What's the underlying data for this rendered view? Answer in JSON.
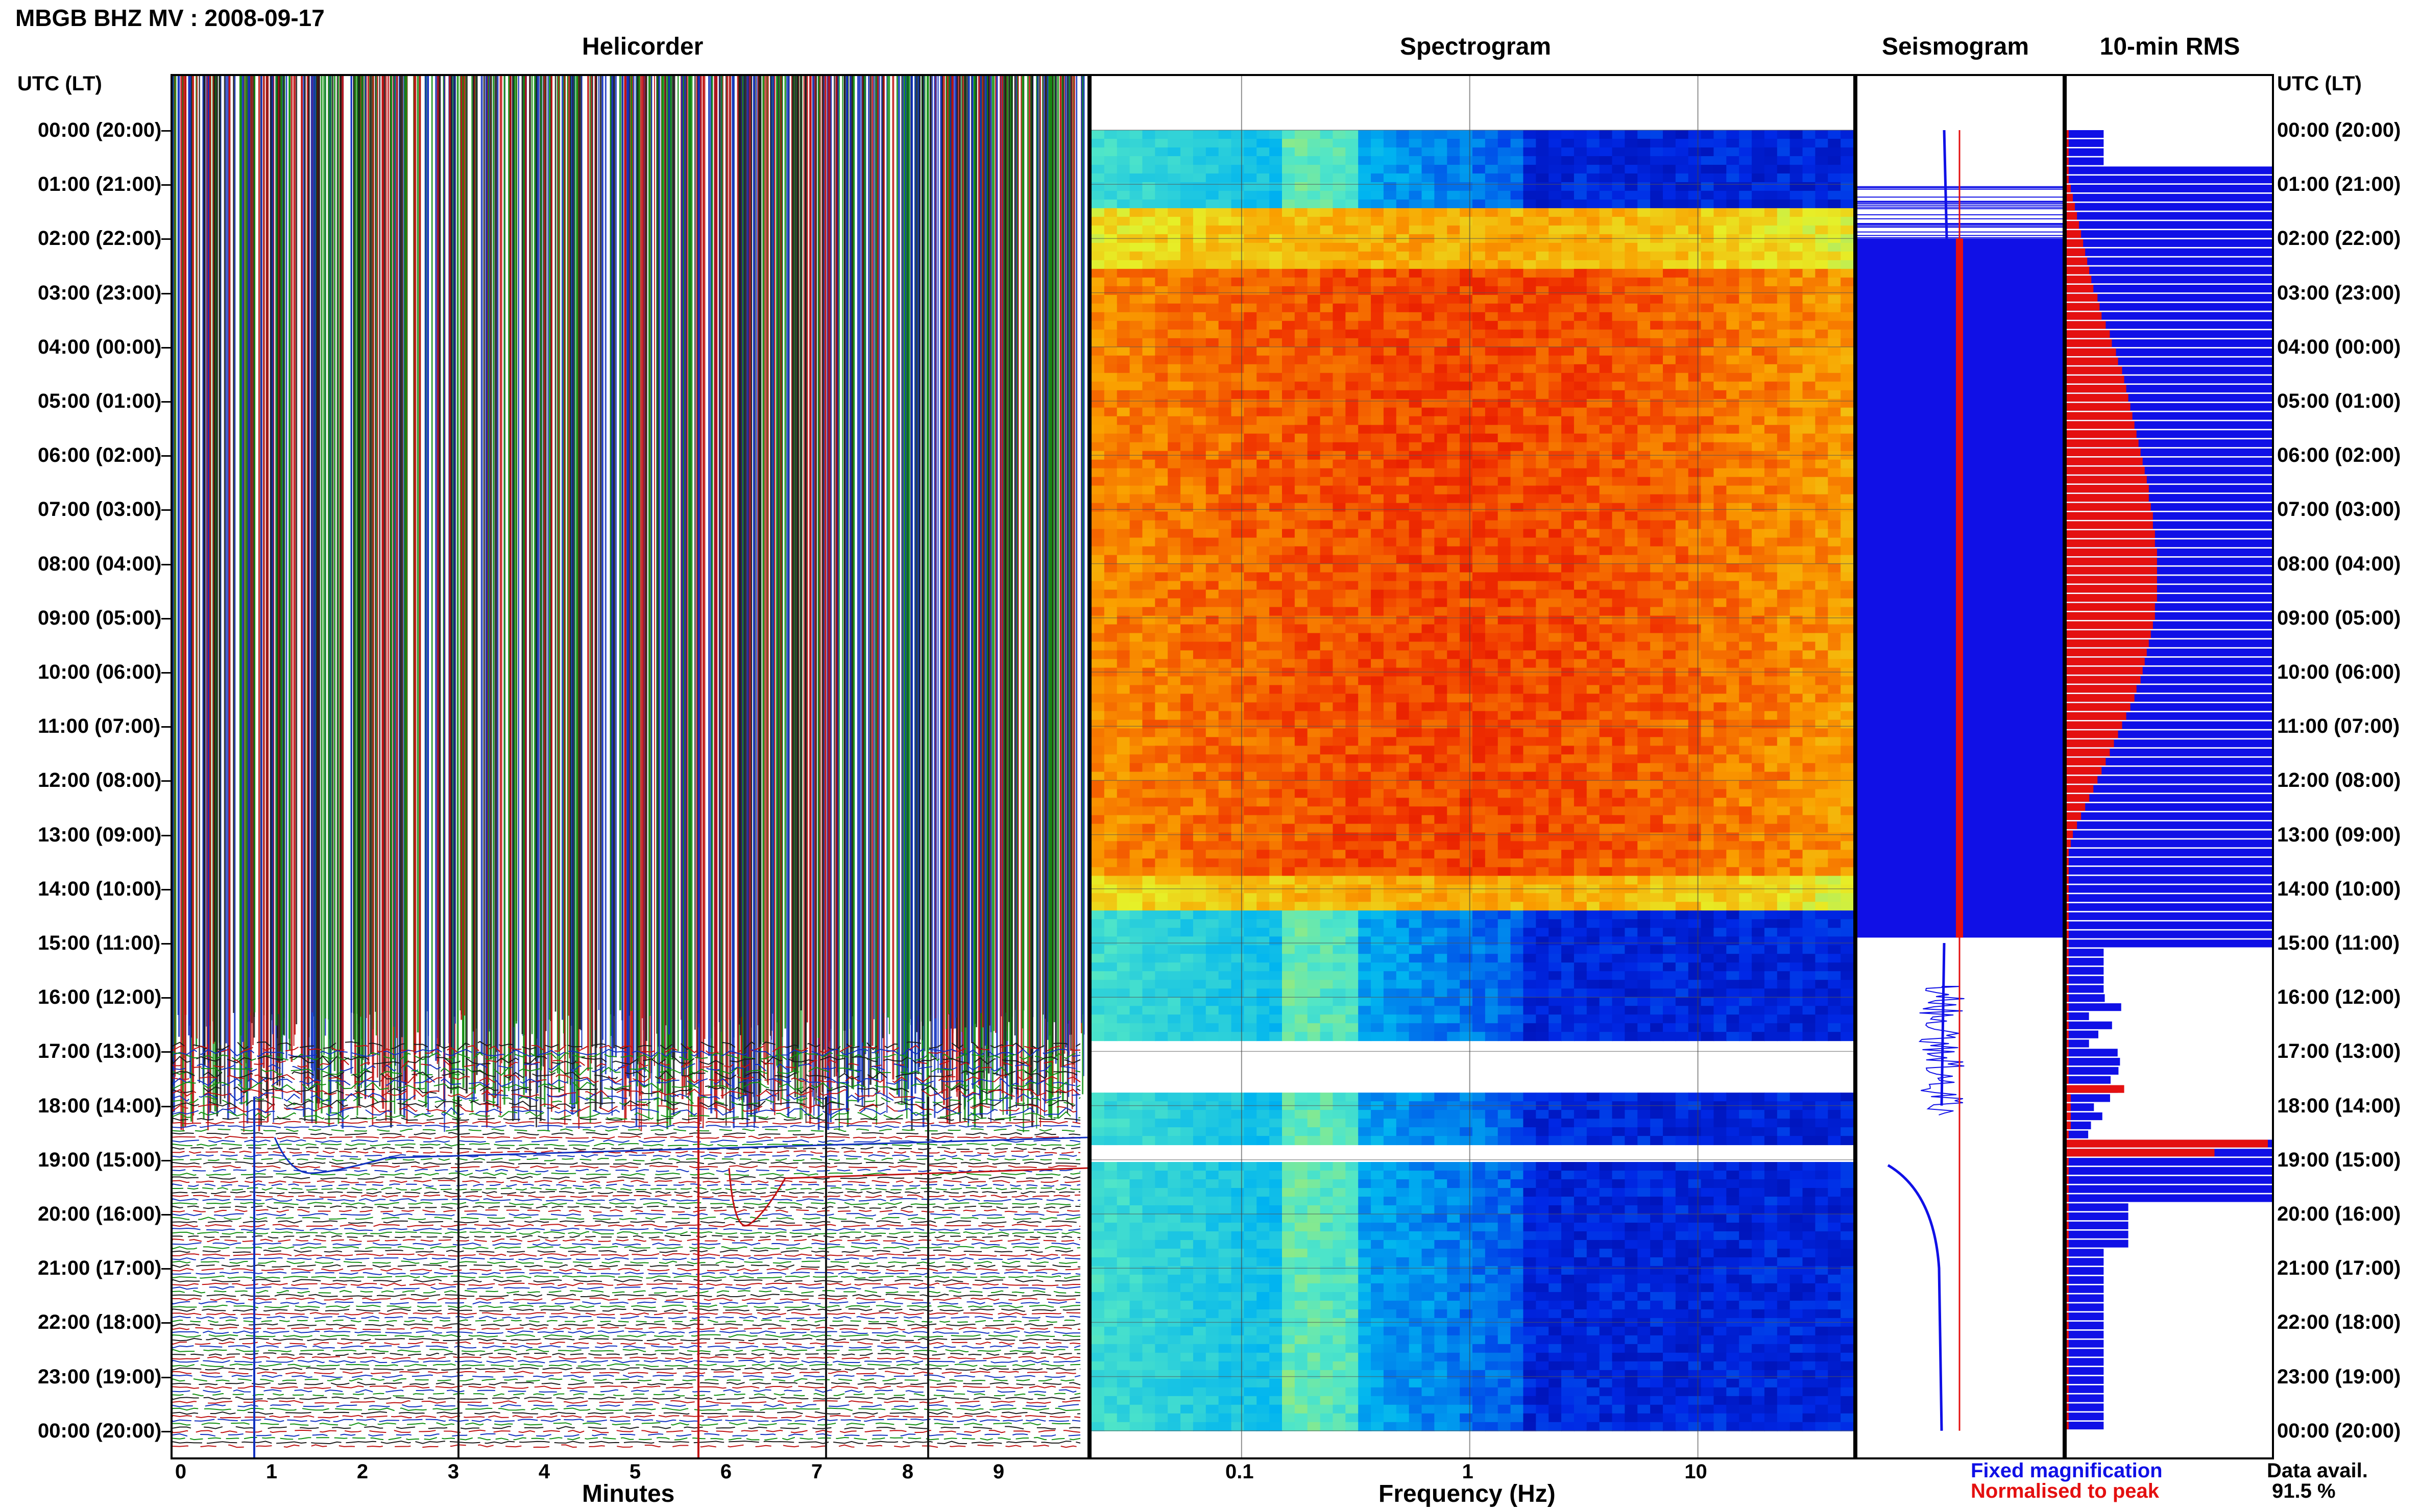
{
  "header": {
    "title": "MBGB BHZ MV : 2008-09-17"
  },
  "panels": {
    "helicorder": "Helicorder",
    "spectrogram": "Spectrogram",
    "seismogram": "Seismogram",
    "rms": "10-min RMS"
  },
  "time_axis": {
    "label": "UTC (LT)",
    "labels": [
      "00:00 (20:00)",
      "01:00 (21:00)",
      "02:00 (22:00)",
      "03:00 (23:00)",
      "04:00 (00:00)",
      "05:00 (01:00)",
      "06:00 (02:00)",
      "07:00 (03:00)",
      "08:00 (04:00)",
      "09:00 (05:00)",
      "10:00 (06:00)",
      "11:00 (07:00)",
      "12:00 (08:00)",
      "13:00 (09:00)",
      "14:00 (10:00)",
      "15:00 (11:00)",
      "16:00 (12:00)",
      "17:00 (13:00)",
      "18:00 (14:00)",
      "19:00 (15:00)",
      "20:00 (16:00)",
      "21:00 (17:00)",
      "22:00 (18:00)",
      "23:00 (19:00)",
      "00:00 (20:00)"
    ]
  },
  "helicorder_axis": {
    "label": "Minutes",
    "ticks": [
      "0",
      "1",
      "2",
      "3",
      "4",
      "5",
      "6",
      "7",
      "8",
      "9"
    ]
  },
  "spectrogram_axis": {
    "label": "Frequency (Hz)",
    "ticks": [
      "0.1",
      "1",
      "10"
    ]
  },
  "legend": {
    "fixed": "Fixed magnification",
    "normalised": "Normalised to peak",
    "fixed_color": "#1010e6",
    "normalised_color": "#e41010"
  },
  "availability": {
    "label": "Data avail.",
    "value": "91.5 %"
  },
  "chart_data": {
    "type": "bar",
    "title": "10-min RMS",
    "xlabel": "",
    "ylabel": "UTC (LT)",
    "note_series": [
      "Fixed magnification",
      "Normalised to peak"
    ],
    "series": [
      {
        "name": "Normalised to peak",
        "values": [
          0.01,
          0.01,
          0.01,
          0.01,
          0.01,
          0.01,
          0.02,
          0.03,
          0.04,
          0.05,
          0.06,
          0.07,
          0.08,
          0.09,
          0.1,
          0.11,
          0.12,
          0.13,
          0.15,
          0.16,
          0.17,
          0.19,
          0.21,
          0.22,
          0.24,
          0.25,
          0.27,
          0.28,
          0.29,
          0.3,
          0.31,
          0.32,
          0.33,
          0.34,
          0.35,
          0.36,
          0.37,
          0.38,
          0.39,
          0.4,
          0.4,
          0.41,
          0.42,
          0.42,
          0.43,
          0.43,
          0.44,
          0.44,
          0.44,
          0.44,
          0.44,
          0.44,
          0.43,
          0.43,
          0.42,
          0.41,
          0.4,
          0.39,
          0.38,
          0.37,
          0.36,
          0.34,
          0.33,
          0.31,
          0.29,
          0.27,
          0.25,
          0.23,
          0.21,
          0.19,
          0.17,
          0.15,
          0.13,
          0.11,
          0.09,
          0.07,
          0.05,
          0.03,
          0.02,
          0.01,
          0.01,
          0.01,
          0.01,
          0.01,
          0.01,
          0.01,
          0.01,
          0.01,
          0.01,
          0.01,
          0.01,
          0.01,
          0.01,
          0.01,
          0.01,
          0.01,
          0.01,
          0.01,
          0.01,
          0.01,
          0.01,
          0.01,
          0.01,
          0.01,
          0.01,
          0.28,
          0.02,
          0.02,
          0.02,
          0.02,
          0.01,
          0.98,
          0.72,
          0.01,
          0.01,
          0.01,
          0.01,
          0.01,
          0.01,
          0.01,
          0.01,
          0.01,
          0.01,
          0.01,
          0.01,
          0.01,
          0.01,
          0.01,
          0.01,
          0.01,
          0.01,
          0.01,
          0.01,
          0.01,
          0.01,
          0.01,
          0.01,
          0.01,
          0.01,
          0.01,
          0.01,
          0.01,
          0.01
        ]
      }
    ]
  }
}
